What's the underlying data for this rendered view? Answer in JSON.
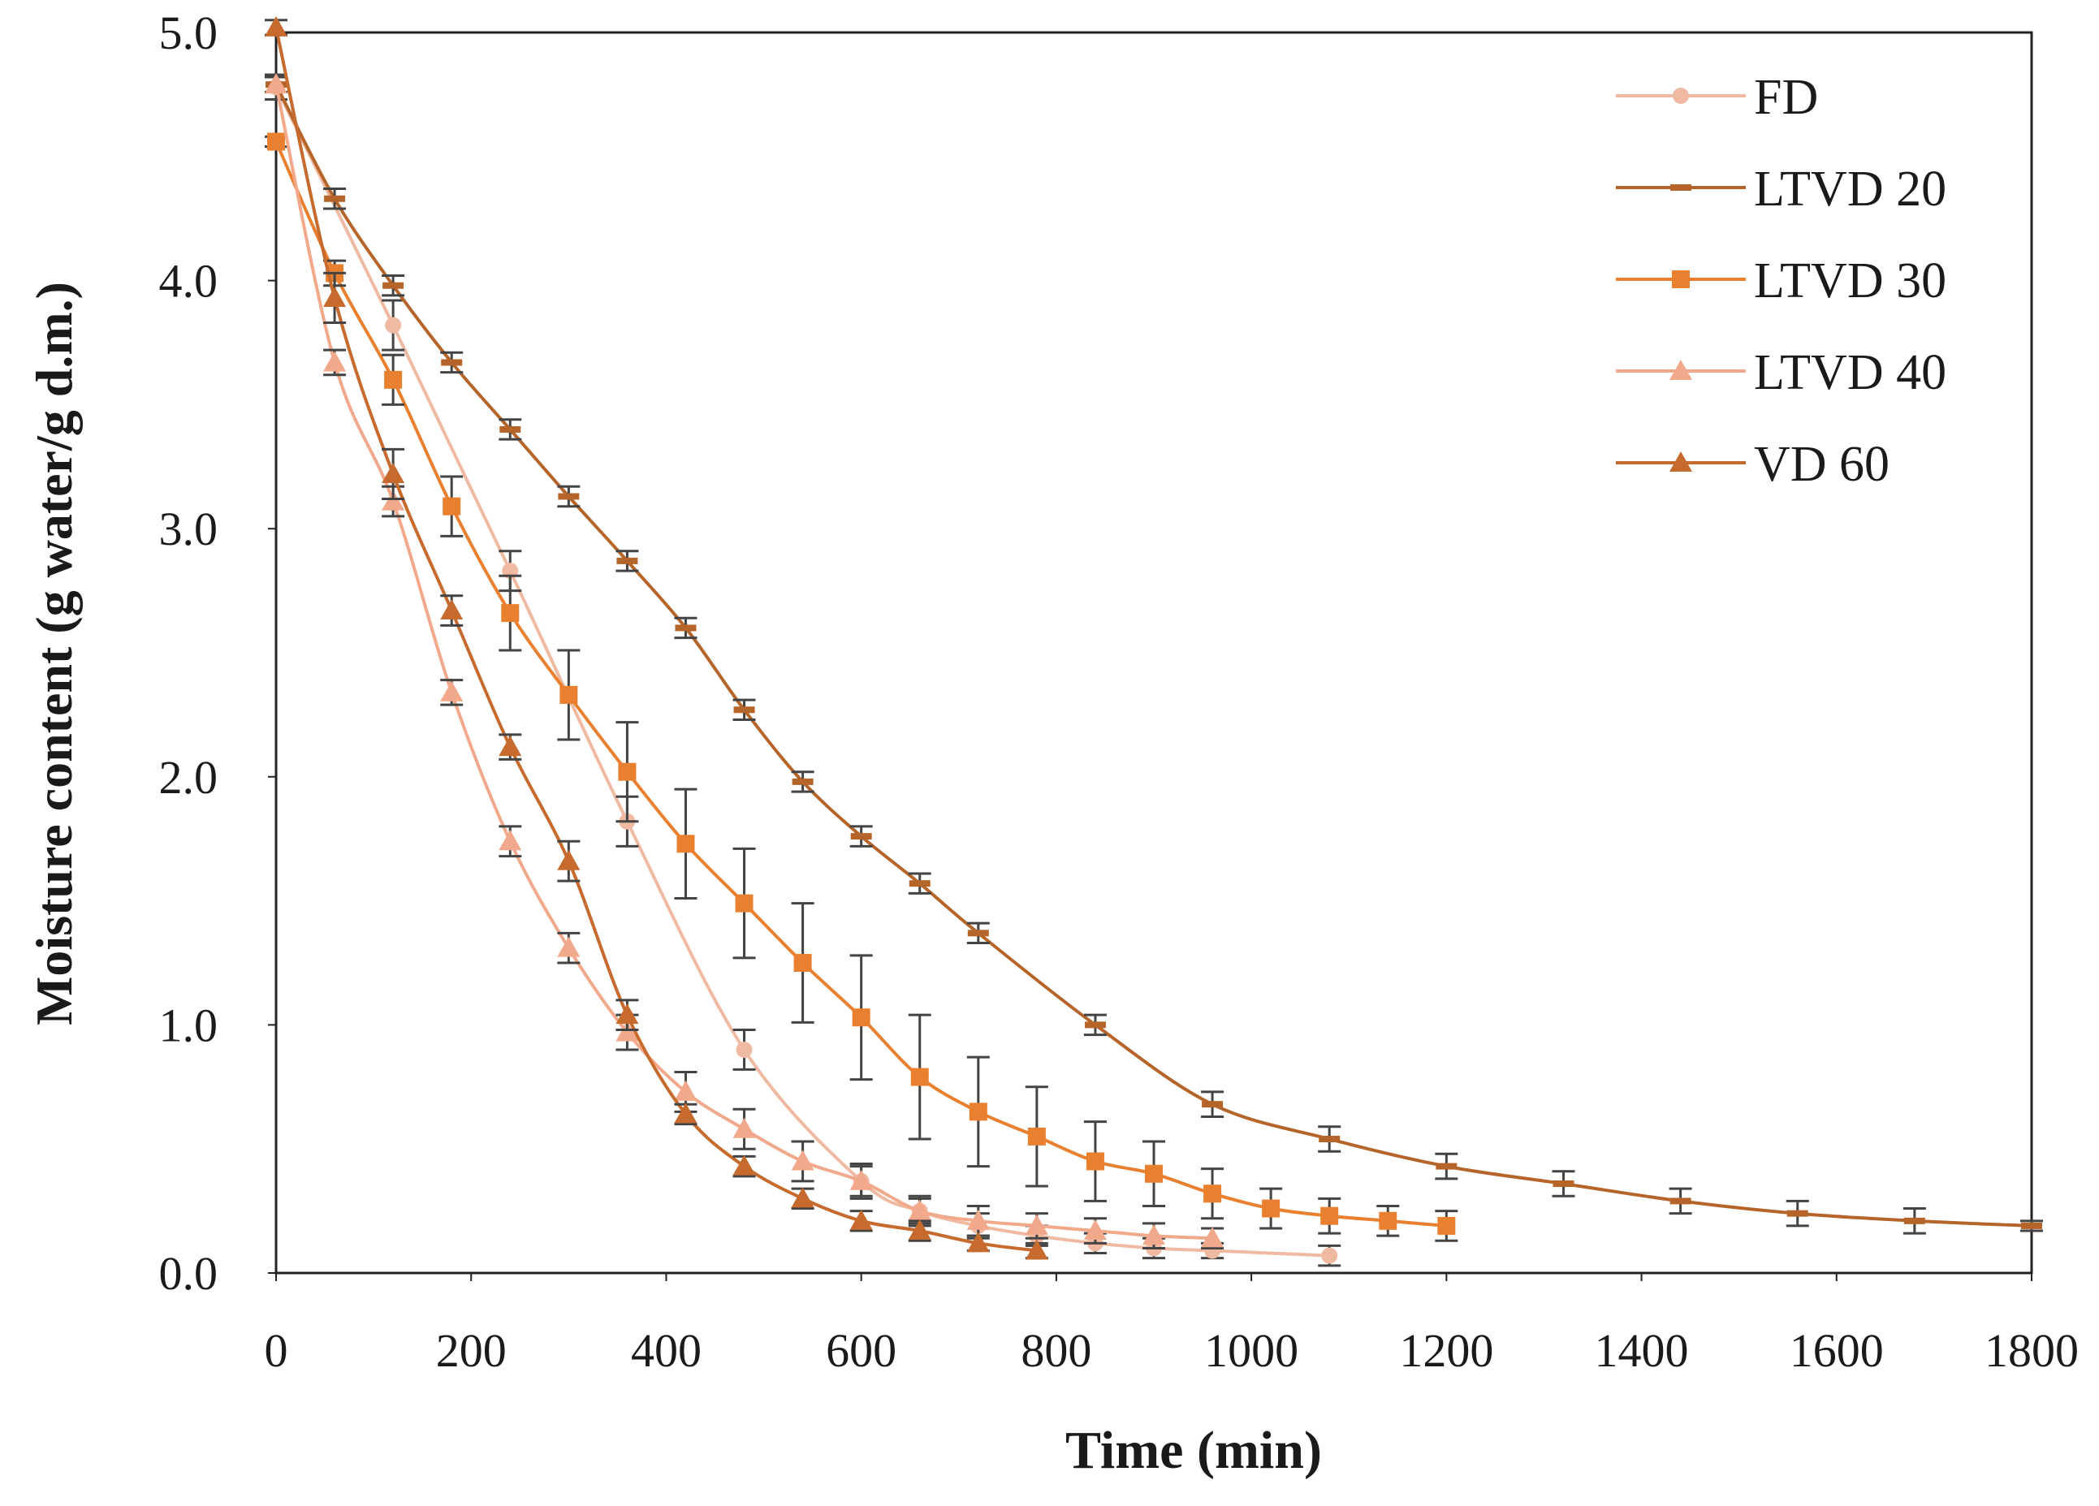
{
  "chart_data": {
    "type": "line",
    "xlabel": "Time (min)",
    "ylabel": "Moisture content (g water/g d.m.)",
    "xlim": [
      0,
      1800
    ],
    "ylim": [
      0,
      5
    ],
    "xticks": [
      0,
      200,
      400,
      600,
      800,
      1000,
      1200,
      1400,
      1600,
      1800
    ],
    "yticks": [
      0,
      1,
      2,
      3,
      4,
      5
    ],
    "ytick_labels": [
      "0.0",
      "1.0",
      "2.0",
      "3.0",
      "4.0",
      "5.0"
    ],
    "grid": false,
    "legend_position": "top-right",
    "series": [
      {
        "name": "FD",
        "marker": "circle",
        "color": "#f0b9a1",
        "x": [
          0,
          120,
          240,
          360,
          480,
          600,
          660,
          720,
          780,
          840,
          900,
          960,
          1080
        ],
        "y": [
          4.78,
          3.82,
          2.83,
          1.82,
          0.9,
          0.37,
          0.25,
          0.19,
          0.15,
          0.12,
          0.1,
          0.09,
          0.07
        ],
        "err": [
          0.05,
          0.1,
          0.08,
          0.1,
          0.08,
          0.06,
          0.05,
          0.05,
          0.04,
          0.04,
          0.04,
          0.03,
          0.04
        ]
      },
      {
        "name": "LTVD 20",
        "marker": "dash",
        "color": "#b5652a",
        "x": [
          0,
          60,
          120,
          180,
          240,
          300,
          360,
          420,
          480,
          540,
          600,
          660,
          720,
          840,
          960,
          1080,
          1200,
          1320,
          1440,
          1560,
          1680,
          1800
        ],
        "y": [
          4.79,
          4.33,
          3.98,
          3.67,
          3.4,
          3.13,
          2.87,
          2.6,
          2.27,
          1.98,
          1.76,
          1.57,
          1.37,
          1.0,
          0.68,
          0.54,
          0.43,
          0.36,
          0.29,
          0.24,
          0.21,
          0.19
        ],
        "err": [
          0.03,
          0.04,
          0.04,
          0.04,
          0.04,
          0.04,
          0.04,
          0.04,
          0.04,
          0.04,
          0.04,
          0.04,
          0.04,
          0.04,
          0.05,
          0.05,
          0.05,
          0.05,
          0.05,
          0.05,
          0.05,
          0.02
        ]
      },
      {
        "name": "LTVD 30",
        "marker": "square",
        "color": "#e8802f",
        "x": [
          0,
          60,
          120,
          180,
          240,
          300,
          360,
          420,
          480,
          540,
          600,
          660,
          720,
          780,
          840,
          900,
          960,
          1020,
          1080,
          1140,
          1200
        ],
        "y": [
          4.56,
          4.03,
          3.6,
          3.09,
          2.66,
          2.33,
          2.02,
          1.73,
          1.49,
          1.25,
          1.03,
          0.79,
          0.65,
          0.55,
          0.45,
          0.4,
          0.32,
          0.26,
          0.23,
          0.21,
          0.19
        ],
        "err": [
          0.02,
          0.05,
          0.1,
          0.12,
          0.15,
          0.18,
          0.2,
          0.22,
          0.22,
          0.24,
          0.25,
          0.25,
          0.22,
          0.2,
          0.16,
          0.13,
          0.1,
          0.08,
          0.07,
          0.06,
          0.06
        ]
      },
      {
        "name": "LTVD 40",
        "marker": "triangle",
        "color": "#f2a88a",
        "x": [
          0,
          60,
          120,
          180,
          240,
          300,
          360,
          420,
          480,
          540,
          600,
          660,
          720,
          780,
          840,
          900,
          960
        ],
        "y": [
          4.79,
          3.67,
          3.11,
          2.34,
          1.74,
          1.31,
          0.97,
          0.73,
          0.58,
          0.45,
          0.37,
          0.25,
          0.21,
          0.19,
          0.17,
          0.15,
          0.14
        ],
        "err": [
          0.03,
          0.05,
          0.06,
          0.05,
          0.06,
          0.06,
          0.07,
          0.08,
          0.08,
          0.08,
          0.07,
          0.06,
          0.06,
          0.05,
          0.05,
          0.05,
          0.04
        ]
      },
      {
        "name": "VD 60",
        "marker": "triangle",
        "color": "#c76a2d",
        "x": [
          0,
          60,
          120,
          180,
          240,
          300,
          360,
          420,
          480,
          540,
          600,
          660,
          720,
          780
        ],
        "y": [
          5.02,
          3.93,
          3.22,
          2.67,
          2.12,
          1.66,
          1.04,
          0.64,
          0.43,
          0.3,
          0.21,
          0.17,
          0.12,
          0.09
        ],
        "err": [
          0.03,
          0.1,
          0.1,
          0.06,
          0.05,
          0.08,
          0.06,
          0.04,
          0.04,
          0.04,
          0.04,
          0.04,
          0.03,
          0.03
        ]
      }
    ]
  }
}
